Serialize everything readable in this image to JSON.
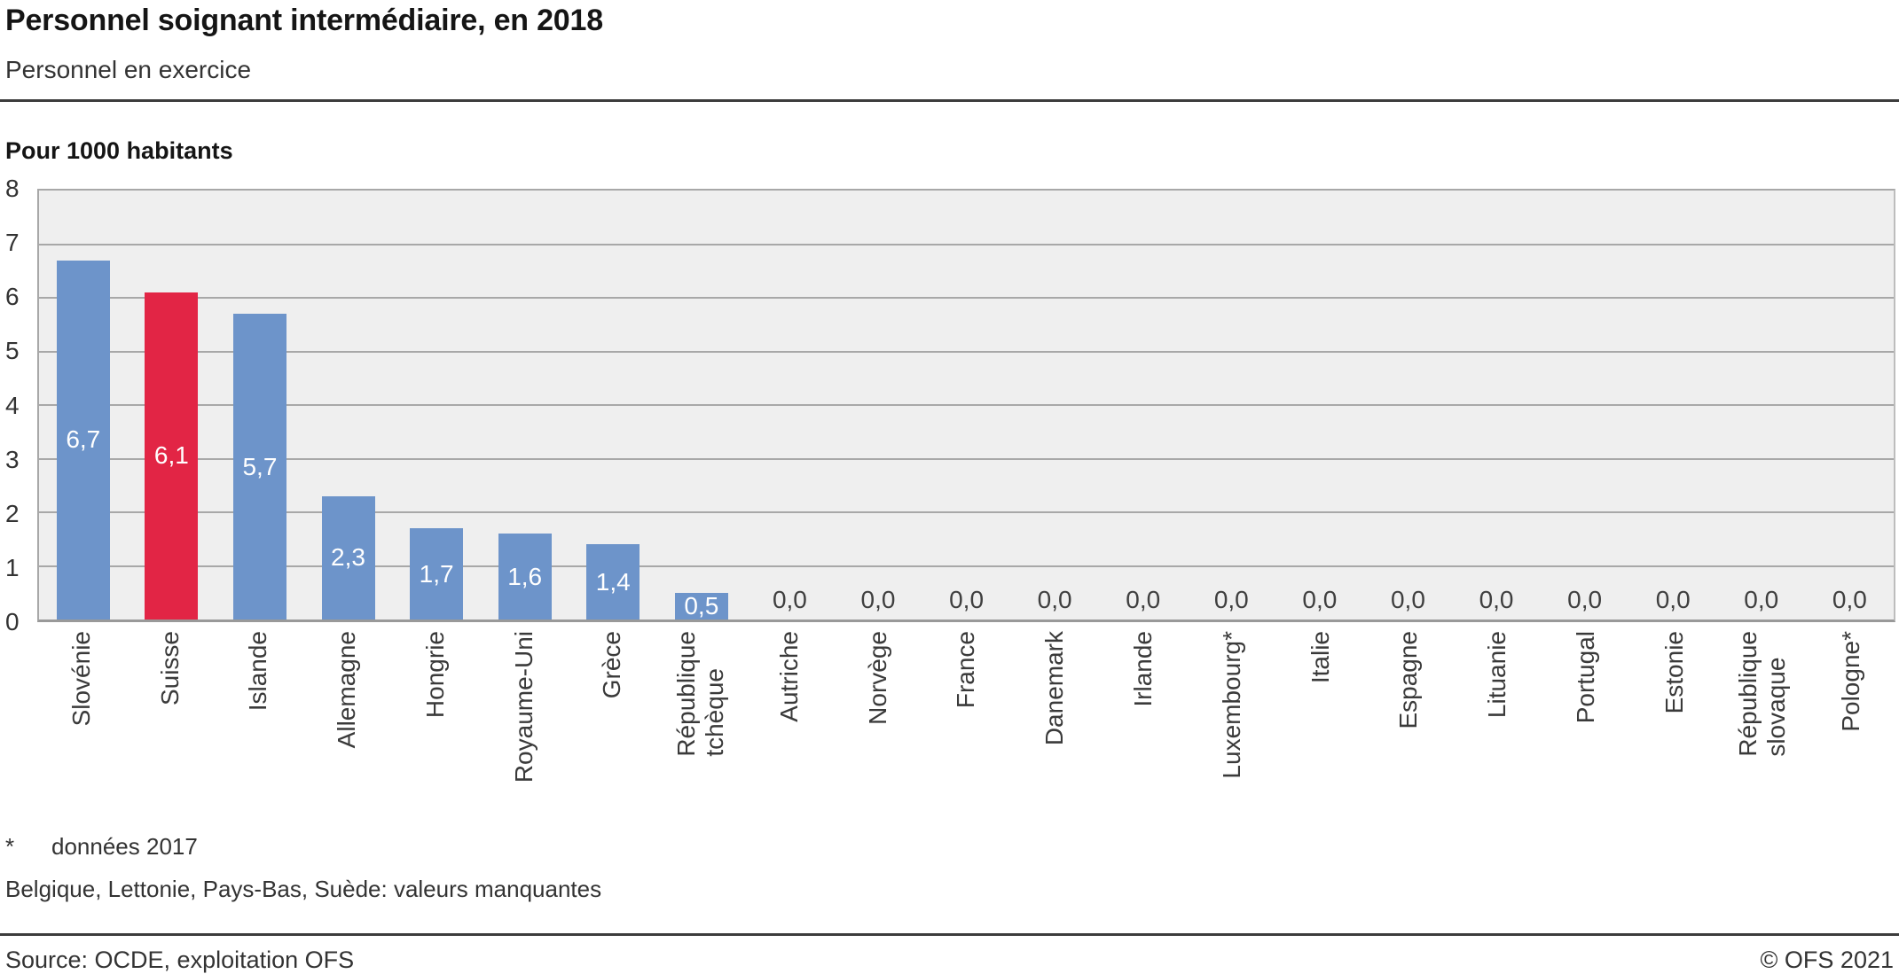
{
  "header": {
    "title": "Personnel soignant intermédiaire, en 2018",
    "subtitle": "Personnel en exercice"
  },
  "chart_data": {
    "type": "bar",
    "title": "Personnel soignant intermédiaire, en 2018",
    "subtitle": "Personnel en exercice",
    "unit_label": "Pour 1000 habitants",
    "categories": [
      "Slovénie",
      "Suisse",
      "Islande",
      "Allemagne",
      "Hongrie",
      "Royaume-Uni",
      "Grèce",
      "République\ntchèque",
      "Autriche",
      "Norvège",
      "France",
      "Danemark",
      "Irlande",
      "Luxembourg*",
      "Italie",
      "Espagne",
      "Lituanie",
      "Portugal",
      "Estonie",
      "République\nslovaque",
      "Pologne*"
    ],
    "values": [
      6.7,
      6.1,
      5.7,
      2.3,
      1.7,
      1.6,
      1.4,
      0.5,
      0,
      0,
      0,
      0,
      0,
      0,
      0,
      0,
      0,
      0,
      0,
      0,
      0
    ],
    "value_labels": [
      "6,7",
      "6,1",
      "5,7",
      "2,3",
      "1,7",
      "1,6",
      "1,4",
      "0,5",
      "0,0",
      "0,0",
      "0,0",
      "0,0",
      "0,0",
      "0,0",
      "0,0",
      "0,0",
      "0,0",
      "0,0",
      "0,0",
      "0,0",
      "0,0"
    ],
    "highlight_category": "Suisse",
    "highlight_index": 1,
    "ylim": [
      0,
      8
    ],
    "yticks": [
      0,
      1,
      2,
      3,
      4,
      5,
      6,
      7,
      8
    ],
    "grid": true,
    "legend_position": "none",
    "colors": {
      "bar": "#6d94ca",
      "highlight": "#e22545",
      "plot_background": "#efefef",
      "gridline": "#a8a8a8",
      "value_label_in_bar": "#ffffff",
      "value_label_zero": "#3f3f3f"
    }
  },
  "footnotes": {
    "star_marker": "*",
    "star_text": "données 2017",
    "missing_text": "Belgique, Lettonie, Pays-Bas, Suède: valeurs manquantes"
  },
  "footer": {
    "source": "Source: OCDE, exploitation OFS",
    "copyright": "© OFS 2021"
  }
}
